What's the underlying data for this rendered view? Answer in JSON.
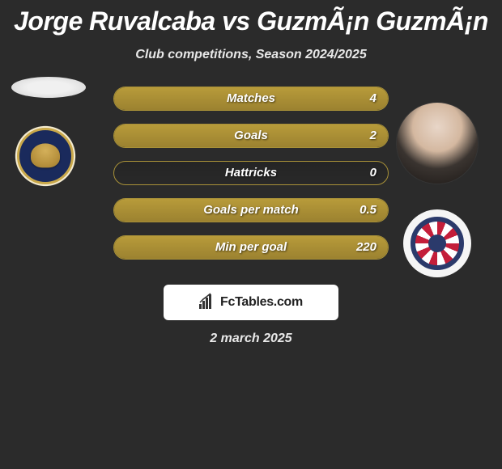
{
  "title": "Jorge Ruvalcaba vs GuzmÃ¡n GuzmÃ¡n",
  "subtitle": "Club competitions, Season 2024/2025",
  "date": "2 march 2025",
  "watermark": "FcTables.com",
  "colors": {
    "background": "#2b2b2b",
    "bar_fill": "#a89138",
    "bar_border": "#a89138",
    "text": "#ffffff",
    "subtitle_text": "#e8e8e8"
  },
  "stats": [
    {
      "label": "Matches",
      "value": "4",
      "fill_pct": 100
    },
    {
      "label": "Goals",
      "value": "2",
      "fill_pct": 100
    },
    {
      "label": "Hattricks",
      "value": "0",
      "fill_pct": 0
    },
    {
      "label": "Goals per match",
      "value": "0.5",
      "fill_pct": 100
    },
    {
      "label": "Min per goal",
      "value": "220",
      "fill_pct": 100
    }
  ],
  "player_left": {
    "name": "Jorge Ruvalcaba",
    "team_badge": "pumas-unam"
  },
  "player_right": {
    "name": "GuzmÃ¡n GuzmÃ¡n",
    "team_badge": "chivas-guadalajara"
  }
}
